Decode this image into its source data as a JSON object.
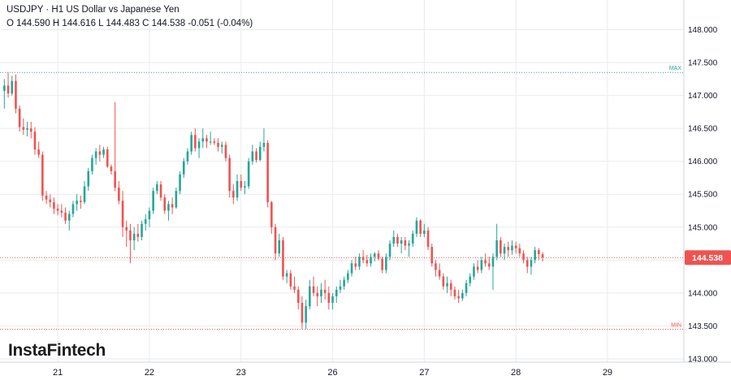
{
  "header": {
    "symbol": "USDJPY",
    "separator": "·",
    "timeframe": "H1",
    "description": "US Dollar vs Japanese Yen",
    "ohlc": "O 144.590 H 144.616 L 144.483 C 144.538  -0.051 (-0.04%)"
  },
  "logo": {
    "text": "InstaFintech"
  },
  "colors": {
    "up": "#26a69a",
    "down": "#ef5350",
    "grid": "#e9ebef",
    "max_line": "#26a69a",
    "min_line": "#ef5350",
    "current_line": "#ef5350",
    "axis_text": "#131722"
  },
  "chart_data": {
    "type": "candlestick",
    "symbol": "USDJPY",
    "interval": "H1",
    "title": "USDJPY · H1 US Dollar vs Japanese Yen",
    "ylim": [
      142.95,
      148.45
    ],
    "y_ticks": [
      "148.000",
      "147.500",
      "147.000",
      "146.500",
      "146.000",
      "145.500",
      "145.000",
      "144.500",
      "144.000",
      "143.500",
      "143.000"
    ],
    "x_ticks": [
      {
        "label": "21",
        "index": 14
      },
      {
        "label": "22",
        "index": 38
      },
      {
        "label": "23",
        "index": 62
      },
      {
        "label": "26",
        "index": 86
      },
      {
        "label": "27",
        "index": 110
      },
      {
        "label": "28",
        "index": 134
      },
      {
        "label": "29",
        "index": 158
      }
    ],
    "grid": true,
    "max_label": "MAX",
    "max_value": 147.35,
    "min_label": "MIN",
    "min_value": 143.45,
    "last_price": 144.538,
    "last_price_label": "144.538",
    "candles": [
      [
        147.07,
        147.25,
        146.8,
        147.15
      ],
      [
        147.15,
        147.35,
        146.97,
        147.03
      ],
      [
        147.03,
        147.3,
        147.0,
        147.22
      ],
      [
        147.22,
        147.32,
        146.73,
        146.8
      ],
      [
        146.8,
        146.85,
        146.45,
        146.52
      ],
      [
        146.52,
        146.65,
        146.4,
        146.48
      ],
      [
        146.48,
        146.6,
        146.38,
        146.5
      ],
      [
        146.5,
        146.6,
        146.35,
        146.45
      ],
      [
        146.45,
        146.52,
        146.1,
        146.18
      ],
      [
        146.18,
        146.3,
        146.05,
        146.1
      ],
      [
        146.1,
        146.15,
        145.4,
        145.48
      ],
      [
        145.48,
        145.55,
        145.35,
        145.42
      ],
      [
        145.42,
        145.5,
        145.3,
        145.38
      ],
      [
        145.38,
        145.45,
        145.2,
        145.28
      ],
      [
        145.28,
        145.35,
        145.18,
        145.25
      ],
      [
        145.25,
        145.35,
        145.15,
        145.22
      ],
      [
        145.22,
        145.3,
        145.05,
        145.1
      ],
      [
        145.1,
        145.25,
        144.95,
        145.2
      ],
      [
        145.2,
        145.4,
        145.15,
        145.35
      ],
      [
        145.35,
        145.5,
        145.25,
        145.4
      ],
      [
        145.4,
        145.48,
        145.28,
        145.38
      ],
      [
        145.38,
        145.7,
        145.35,
        145.62
      ],
      [
        145.62,
        145.9,
        145.55,
        145.85
      ],
      [
        145.85,
        146.1,
        145.8,
        146.05
      ],
      [
        146.05,
        146.2,
        145.95,
        146.15
      ],
      [
        146.15,
        146.25,
        146.0,
        146.1
      ],
      [
        146.1,
        146.22,
        146.05,
        146.18
      ],
      [
        146.18,
        146.22,
        145.9,
        145.92
      ],
      [
        145.92,
        145.95,
        145.8,
        145.85
      ],
      [
        145.85,
        146.9,
        145.55,
        145.6
      ],
      [
        145.6,
        145.7,
        145.35,
        145.4
      ],
      [
        145.4,
        145.55,
        144.85,
        145.0
      ],
      [
        145.0,
        145.1,
        144.7,
        144.95
      ],
      [
        144.95,
        145.05,
        144.45,
        144.8
      ],
      [
        144.8,
        145.0,
        144.65,
        144.9
      ],
      [
        144.9,
        145.05,
        144.78,
        144.85
      ],
      [
        144.85,
        145.1,
        144.8,
        145.05
      ],
      [
        145.05,
        145.2,
        144.95,
        145.12
      ],
      [
        145.12,
        145.3,
        145.0,
        145.25
      ],
      [
        145.25,
        145.6,
        145.2,
        145.55
      ],
      [
        145.55,
        145.7,
        145.5,
        145.65
      ],
      [
        145.65,
        145.7,
        145.4,
        145.45
      ],
      [
        145.45,
        145.5,
        145.2,
        145.25
      ],
      [
        145.25,
        145.4,
        145.1,
        145.35
      ],
      [
        145.35,
        145.45,
        145.2,
        145.3
      ],
      [
        145.3,
        145.6,
        145.28,
        145.55
      ],
      [
        145.55,
        145.85,
        145.5,
        145.8
      ],
      [
        145.8,
        146.05,
        145.75,
        146.0
      ],
      [
        146.0,
        146.2,
        145.95,
        146.15
      ],
      [
        146.15,
        146.45,
        146.1,
        146.4
      ],
      [
        146.4,
        146.5,
        146.15,
        146.2
      ],
      [
        146.2,
        146.35,
        146.05,
        146.3
      ],
      [
        146.3,
        146.5,
        146.2,
        146.35
      ],
      [
        146.35,
        146.4,
        146.2,
        146.3
      ],
      [
        146.3,
        146.45,
        146.25,
        146.3
      ],
      [
        146.3,
        146.35,
        146.25,
        146.28
      ],
      [
        146.28,
        146.35,
        146.15,
        146.22
      ],
      [
        146.22,
        146.3,
        146.12,
        146.25
      ],
      [
        146.25,
        146.3,
        146.0,
        146.05
      ],
      [
        146.05,
        146.1,
        145.45,
        145.55
      ],
      [
        145.55,
        145.65,
        145.35,
        145.45
      ],
      [
        145.45,
        145.8,
        145.4,
        145.7
      ],
      [
        145.7,
        145.8,
        145.55,
        145.6
      ],
      [
        145.6,
        145.7,
        145.5,
        145.62
      ],
      [
        145.62,
        146.05,
        145.58,
        146.0
      ],
      [
        146.0,
        146.25,
        145.95,
        146.15
      ],
      [
        146.15,
        146.2,
        145.98,
        146.02
      ],
      [
        146.02,
        146.3,
        146.0,
        146.22
      ],
      [
        146.22,
        146.5,
        146.15,
        146.28
      ],
      [
        146.28,
        146.32,
        145.3,
        145.38
      ],
      [
        145.38,
        145.4,
        144.9,
        145.0
      ],
      [
        145.0,
        145.05,
        144.5,
        144.6
      ],
      [
        144.6,
        144.9,
        144.55,
        144.8
      ],
      [
        144.8,
        144.85,
        144.2,
        144.25
      ],
      [
        144.25,
        144.35,
        144.15,
        144.3
      ],
      [
        144.3,
        144.35,
        144.05,
        144.1
      ],
      [
        144.1,
        144.25,
        144.0,
        144.05
      ],
      [
        144.05,
        144.1,
        143.75,
        143.85
      ],
      [
        143.85,
        143.95,
        143.45,
        143.55
      ],
      [
        143.55,
        143.9,
        143.45,
        143.8
      ],
      [
        143.8,
        144.2,
        143.75,
        144.1
      ],
      [
        144.1,
        144.25,
        143.95,
        144.0
      ],
      [
        144.0,
        144.1,
        143.8,
        143.95
      ],
      [
        143.95,
        144.15,
        143.85,
        144.05
      ],
      [
        144.05,
        144.2,
        143.9,
        144.0
      ],
      [
        144.0,
        144.1,
        143.75,
        143.85
      ],
      [
        143.85,
        144.0,
        143.75,
        143.95
      ],
      [
        143.95,
        144.1,
        143.85,
        144.05
      ],
      [
        144.05,
        144.2,
        144.0,
        144.1
      ],
      [
        144.1,
        144.25,
        144.05,
        144.2
      ],
      [
        144.2,
        144.35,
        144.15,
        144.3
      ],
      [
        144.3,
        144.5,
        144.25,
        144.45
      ],
      [
        144.45,
        144.55,
        144.35,
        144.4
      ],
      [
        144.4,
        144.6,
        144.35,
        144.55
      ],
      [
        144.55,
        144.65,
        144.45,
        144.5
      ],
      [
        144.5,
        144.58,
        144.4,
        144.45
      ],
      [
        144.45,
        144.6,
        144.4,
        144.55
      ],
      [
        144.55,
        144.62,
        144.48,
        144.6
      ],
      [
        144.6,
        144.65,
        144.5,
        144.52
      ],
      [
        144.52,
        144.55,
        144.3,
        144.35
      ],
      [
        144.35,
        144.6,
        144.3,
        144.55
      ],
      [
        144.55,
        144.8,
        144.5,
        144.75
      ],
      [
        144.75,
        144.95,
        144.7,
        144.85
      ],
      [
        144.85,
        144.9,
        144.7,
        144.75
      ],
      [
        144.75,
        144.85,
        144.6,
        144.8
      ],
      [
        144.8,
        144.85,
        144.65,
        144.72
      ],
      [
        144.72,
        144.8,
        144.55,
        144.75
      ],
      [
        144.75,
        144.95,
        144.7,
        144.9
      ],
      [
        144.9,
        145.15,
        144.85,
        145.1
      ],
      [
        145.1,
        145.12,
        144.85,
        144.9
      ],
      [
        144.9,
        145.05,
        144.85,
        144.95
      ],
      [
        144.95,
        145.0,
        144.65,
        144.7
      ],
      [
        144.7,
        144.75,
        144.4,
        144.45
      ],
      [
        144.45,
        144.5,
        144.25,
        144.35
      ],
      [
        144.35,
        144.45,
        144.2,
        144.25
      ],
      [
        144.25,
        144.3,
        144.05,
        144.1
      ],
      [
        144.1,
        144.25,
        144.0,
        144.15
      ],
      [
        144.15,
        144.2,
        143.95,
        144.05
      ],
      [
        144.05,
        144.1,
        143.9,
        143.95
      ],
      [
        143.95,
        144.05,
        143.85,
        143.92
      ],
      [
        143.92,
        144.05,
        143.88,
        144.0
      ],
      [
        144.0,
        144.2,
        143.95,
        144.15
      ],
      [
        144.15,
        144.3,
        144.1,
        144.25
      ],
      [
        144.25,
        144.45,
        144.2,
        144.4
      ],
      [
        144.4,
        144.5,
        144.3,
        144.35
      ],
      [
        144.35,
        144.55,
        144.3,
        144.5
      ],
      [
        144.5,
        144.6,
        144.4,
        144.45
      ],
      [
        144.45,
        144.55,
        144.35,
        144.4
      ],
      [
        144.4,
        144.6,
        144.05,
        144.55
      ],
      [
        144.55,
        145.05,
        144.5,
        144.8
      ],
      [
        144.8,
        144.85,
        144.55,
        144.6
      ],
      [
        144.6,
        144.75,
        144.5,
        144.7
      ],
      [
        144.7,
        144.78,
        144.55,
        144.65
      ],
      [
        144.65,
        144.8,
        144.58,
        144.72
      ],
      [
        144.72,
        144.78,
        144.6,
        144.68
      ],
      [
        144.68,
        144.75,
        144.55,
        144.6
      ],
      [
        144.6,
        144.65,
        144.45,
        144.5
      ],
      [
        144.5,
        144.55,
        144.3,
        144.4
      ],
      [
        144.4,
        144.55,
        144.28,
        144.5
      ],
      [
        144.5,
        144.7,
        144.45,
        144.65
      ],
      [
        144.65,
        144.68,
        144.5,
        144.59
      ],
      [
        144.59,
        144.62,
        144.48,
        144.54
      ]
    ]
  }
}
